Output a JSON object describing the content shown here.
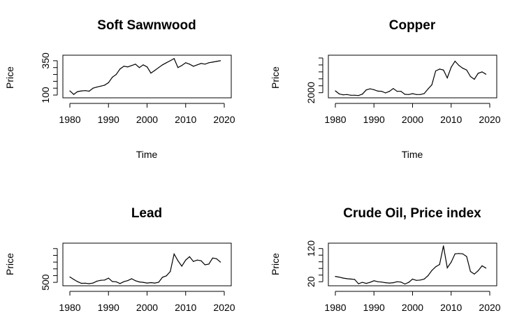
{
  "chart_data": [
    {
      "type": "line",
      "title": "Soft Sawnwood",
      "xlabel": "Time",
      "ylabel": "Price",
      "xlim": [
        1980,
        2020
      ],
      "ylim": [
        90,
        380
      ],
      "x_ticks": [
        "1980",
        "1990",
        "2000",
        "2010",
        "2020"
      ],
      "y_ticks": [
        {
          "value": 100,
          "label": "100"
        },
        {
          "value": 350,
          "label": "350"
        }
      ],
      "y_minor_ticks": [
        150,
        200,
        250,
        300
      ],
      "x": [
        1980,
        1981,
        1982,
        1983,
        1984,
        1985,
        1986,
        1987,
        1988,
        1989,
        1990,
        1991,
        1992,
        1993,
        1994,
        1995,
        1996,
        1997,
        1998,
        1999,
        2000,
        2001,
        2002,
        2003,
        2004,
        2005,
        2006,
        2007,
        2008,
        2009,
        2010,
        2011,
        2012,
        2013,
        2014,
        2015,
        2016,
        2017,
        2018,
        2019
      ],
      "values": [
        130,
        105,
        125,
        130,
        132,
        128,
        150,
        158,
        165,
        172,
        190,
        230,
        250,
        290,
        310,
        305,
        315,
        325,
        300,
        320,
        305,
        260,
        280,
        300,
        320,
        335,
        350,
        365,
        300,
        315,
        335,
        325,
        310,
        320,
        330,
        325,
        335,
        340,
        345,
        350
      ],
      "grid": false,
      "legend": false
    },
    {
      "type": "line",
      "title": "Copper",
      "xlabel": "Time",
      "ylabel": "Price",
      "xlim": [
        1980,
        2020
      ],
      "ylim": [
        1200,
        9800
      ],
      "x_ticks": [
        "1980",
        "1990",
        "2000",
        "2010",
        "2020"
      ],
      "y_ticks": [
        {
          "value": 2000,
          "label": "2000"
        }
      ],
      "y_minor_ticks": [
        3500,
        5000,
        6500,
        8000,
        9500
      ],
      "x": [
        1980,
        1981,
        1982,
        1983,
        1984,
        1985,
        1986,
        1987,
        1988,
        1989,
        1990,
        1991,
        1992,
        1993,
        1994,
        1995,
        1996,
        1997,
        1998,
        1999,
        2000,
        2001,
        2002,
        2003,
        2004,
        2005,
        2006,
        2007,
        2008,
        2009,
        2010,
        2011,
        2012,
        2013,
        2014,
        2015,
        2016,
        2017,
        2018,
        2019
      ],
      "values": [
        2400,
        1750,
        1550,
        1600,
        1450,
        1450,
        1400,
        1700,
        2600,
        2850,
        2650,
        2350,
        2300,
        1950,
        2300,
        2900,
        2300,
        2300,
        1650,
        1600,
        1800,
        1600,
        1600,
        1800,
        2800,
        3700,
        6700,
        7100,
        6900,
        5200,
        7500,
        8800,
        7900,
        7300,
        6900,
        5500,
        4900,
        6200,
        6500,
        6000
      ],
      "grid": false,
      "legend": false
    },
    {
      "type": "line",
      "title": "Lead",
      "xlabel": "",
      "ylabel": "Price",
      "xlim": [
        1980,
        2020
      ],
      "ylim": [
        350,
        3300
      ],
      "x_ticks": [
        "1980",
        "1990",
        "2000",
        "2010",
        "2020"
      ],
      "y_ticks": [
        {
          "value": 500,
          "label": "500"
        }
      ],
      "y_minor_ticks": [
        1000,
        1500,
        2000,
        2500,
        3000
      ],
      "x": [
        1980,
        1981,
        1982,
        1983,
        1984,
        1985,
        1986,
        1987,
        1988,
        1989,
        1990,
        1991,
        1992,
        1993,
        1994,
        1995,
        1996,
        1997,
        1998,
        1999,
        2000,
        2001,
        2002,
        2003,
        2004,
        2005,
        2006,
        2007,
        2008,
        2009,
        2010,
        2011,
        2012,
        2013,
        2014,
        2015,
        2016,
        2017,
        2018,
        2019
      ],
      "values": [
        900,
        720,
        550,
        430,
        440,
        400,
        450,
        590,
        650,
        670,
        810,
        560,
        540,
        410,
        550,
        630,
        770,
        620,
        530,
        500,
        450,
        480,
        450,
        510,
        880,
        980,
        1300,
        2600,
        2100,
        1700,
        2150,
        2400,
        2050,
        2150,
        2100,
        1800,
        1850,
        2300,
        2250,
        2000
      ],
      "grid": false,
      "legend": false
    },
    {
      "type": "line",
      "title": "Crude Oil, Price index",
      "xlabel": "",
      "ylabel": "Price",
      "xlim": [
        1980,
        2020
      ],
      "ylim": [
        12,
        132
      ],
      "x_ticks": [
        "1980",
        "1990",
        "2000",
        "2010",
        "2020"
      ],
      "y_ticks": [
        {
          "value": 20,
          "label": "20"
        },
        {
          "value": 120,
          "label": "120"
        }
      ],
      "y_minor_ticks": [
        40,
        60,
        80,
        100
      ],
      "x": [
        1980,
        1981,
        1982,
        1983,
        1984,
        1985,
        1986,
        1987,
        1988,
        1989,
        1990,
        1991,
        1992,
        1993,
        1994,
        1995,
        1996,
        1997,
        1998,
        1999,
        2000,
        2001,
        2002,
        2003,
        2004,
        2005,
        2006,
        2007,
        2008,
        2009,
        2010,
        2011,
        2012,
        2013,
        2014,
        2015,
        2016,
        2017,
        2018,
        2019
      ],
      "values": [
        36,
        34,
        31,
        29,
        28,
        27,
        14,
        18,
        15,
        18,
        23,
        20,
        19,
        17,
        16,
        17,
        20,
        19,
        13,
        18,
        28,
        24,
        25,
        28,
        38,
        54,
        65,
        72,
        128,
        62,
        79,
        104,
        105,
        104,
        96,
        51,
        43,
        53,
        68,
        61
      ],
      "grid": false,
      "legend": false
    }
  ]
}
